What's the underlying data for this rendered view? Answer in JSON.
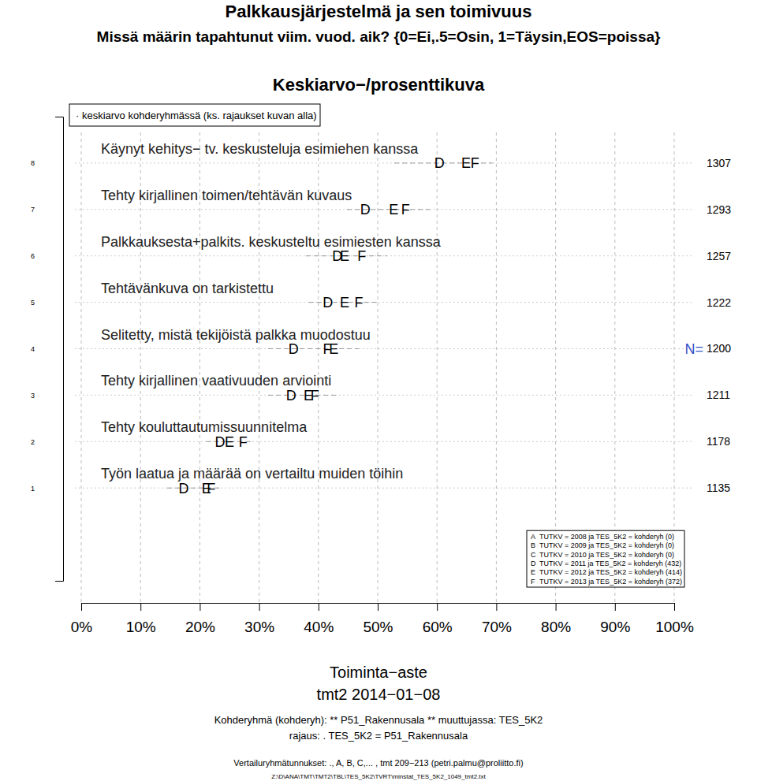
{
  "chart_data": {
    "type": "dot",
    "orientation": "horizontal",
    "title": "Palkkausjärjestelmä ja sen toimivuus",
    "subtitle": "Missä määrin tapahtunut viim. vuod. aik? {0=Ei,.5=Osin, 1=Täysin,EOS=poissa}",
    "x_label": "Toiminta−aste",
    "annotations": [
      "Keskiarvo−/prosenttikuva",
      "· keskiarvo kohderyhmässä (ks. rajaukset kuvan alla)",
      "N=",
      "tmt2 2014−01−08",
      "Kohderyhmä (kohderyh): ** P51_Rakennusala ** muuttujassa:  TES_5K2",
      "rajaus:  . TES_5K2 = P51_Rakennusala",
      "Vertailuryhmätunnukset: ., A, B, C,...   , tmt 209−213 (petri.palmu@proliitto.fi)",
      "Z:\\D\\ANA\\TMT\\TMT2\\TBL\\TES_5K2\\TVRT\\minstat_TES_5K2_1049_tmt2.txt"
    ],
    "categories": [
      "Työn laatua ja määrää on vertailtu muiden töihin",
      "Tehty kouluttautumissuunnitelma",
      "Tehty kirjallinen vaativuuden arviointi",
      "Selitetty, mistä tekijöistä palkka muodostuu",
      "Tehtävänkuva on tarkistettu",
      "Palkkauksesta+palkits. keskusteltu esimiesten kanssa",
      "Tehty kirjallinen toimen/tehtävän kuvaus",
      "Käynyt kehitys− tv. keskusteluja esimiehen kanssa"
    ],
    "y": [
      1,
      2,
      3,
      4,
      5,
      6,
      7,
      8
    ],
    "n": [
      1135,
      1178,
      1211,
      1200,
      1222,
      1257,
      1293,
      1307
    ],
    "intervals": [
      [
        14.5,
        23.3
      ],
      [
        21.1,
        28.9
      ],
      [
        31.5,
        43.5
      ],
      [
        31.5,
        46.8
      ],
      [
        38.4,
        49.9
      ],
      [
        37.9,
        51.5
      ],
      [
        44.8,
        58.8
      ],
      [
        52.8,
        69.4
      ]
    ],
    "series": [
      {
        "name": "TUTKV = 2008 ja TES_5K2 = kohderyh (0)",
        "marker": "A",
        "values": [
          null,
          null,
          null,
          null,
          null,
          null,
          null,
          null
        ]
      },
      {
        "name": "TUTKV = 2009 ja TES_5K2 = kohderyh (0)",
        "marker": "B",
        "values": [
          null,
          null,
          null,
          null,
          null,
          null,
          null,
          null
        ]
      },
      {
        "name": "TUTKV = 2010 ja TES_5K2 = kohderyh (0)",
        "marker": "C",
        "values": [
          null,
          null,
          null,
          null,
          null,
          null,
          null,
          null
        ]
      },
      {
        "name": "TUTKV = 2011 ja TES_5K2 = kohderyh (432)",
        "marker": "D",
        "values": [
          17.3,
          23.4,
          35.4,
          35.8,
          41.6,
          43.2,
          47.9,
          60.4
        ]
      },
      {
        "name": "TUTKV = 2012 ja TES_5K2 = kohderyh (414)",
        "marker": "E",
        "values": [
          21.1,
          25.0,
          38.3,
          42.6,
          44.4,
          44.4,
          52.7,
          64.9
        ]
      },
      {
        "name": "TUTKV = 2013 ja TES_5K2 = kohderyh (372)",
        "marker": "F",
        "values": [
          21.9,
          27.3,
          39.4,
          41.5,
          46.8,
          47.3,
          54.7,
          66.4
        ]
      }
    ],
    "color": "#000000",
    "xlim": [
      0,
      100
    ],
    "xticks": [
      {
        "value": 0,
        "label": "0%"
      },
      {
        "value": 10,
        "label": "10%"
      },
      {
        "value": 20,
        "label": "20%"
      },
      {
        "value": 30,
        "label": "30%"
      },
      {
        "value": 40,
        "label": "40%"
      },
      {
        "value": 50,
        "label": "50%"
      },
      {
        "value": 60,
        "label": "60%"
      },
      {
        "value": 70,
        "label": "70%"
      },
      {
        "value": 80,
        "label": "80%"
      },
      {
        "value": 90,
        "label": "90%"
      },
      {
        "value": 100,
        "label": "100%"
      }
    ],
    "ylim": [
      -1,
      9
    ],
    "yticks": [
      1,
      2,
      3,
      4,
      5,
      6,
      7,
      8
    ],
    "grid": true,
    "legend": "bottom right"
  }
}
